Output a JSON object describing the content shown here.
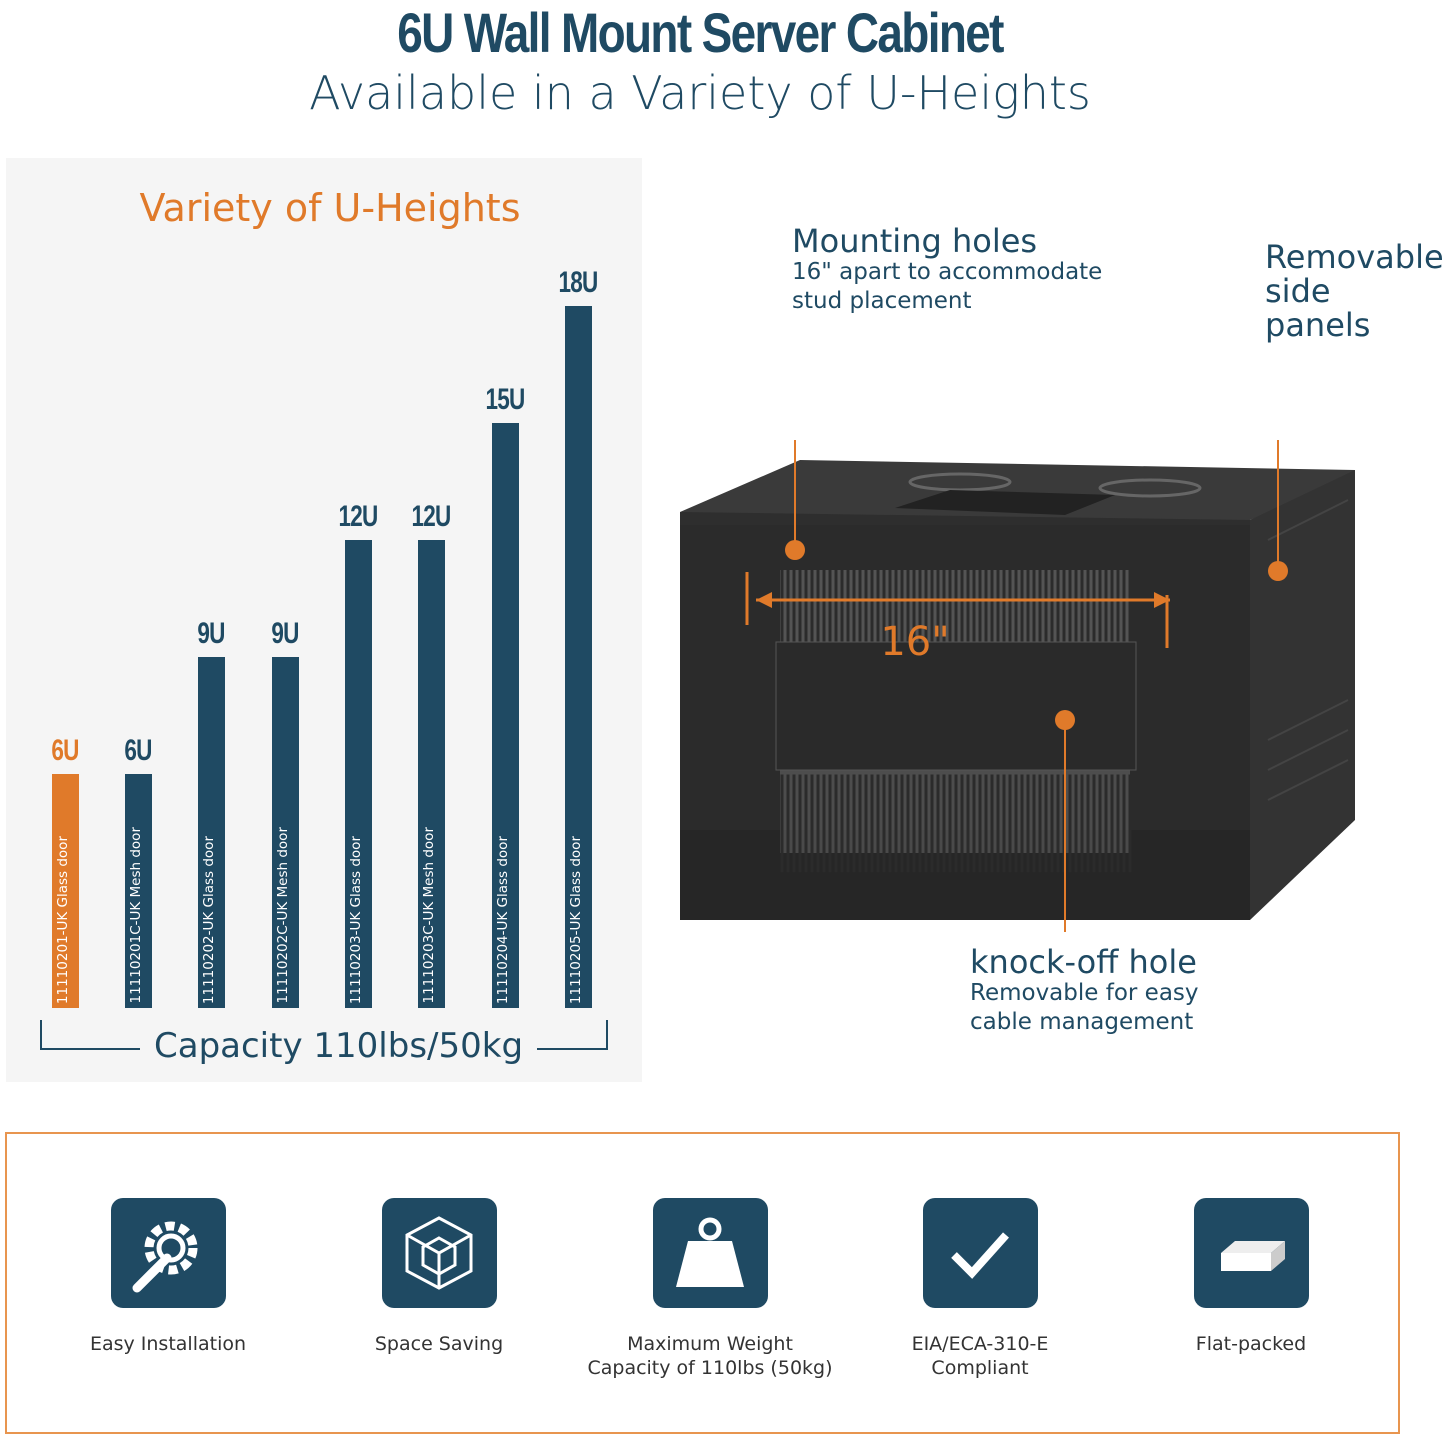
{
  "header": {
    "title": "6U Wall Mount Server Cabinet",
    "subtitle": "Available in a Variety of U-Heights"
  },
  "colors": {
    "primary": "#1f4a63",
    "accent": "#e07a2a",
    "panel_bg": "#f5f5f5"
  },
  "chart_data": {
    "type": "bar",
    "title": "Variety of U-Heights",
    "categories": [
      "11110201-UK Glass door",
      "11110201C-UK Mesh door",
      "11110202-UK Glass door",
      "11110202C-UK Mesh door",
      "11110203-UK Glass door",
      "11110203C-UK Mesh door",
      "11110204-UK Glass door",
      "11110205-UK Glass door"
    ],
    "values": [
      6,
      6,
      9,
      9,
      12,
      12,
      15,
      18
    ],
    "value_labels": [
      "6U",
      "6U",
      "9U",
      "9U",
      "12U",
      "12U",
      "15U",
      "18U"
    ],
    "highlight_index": 0,
    "ylim": [
      0,
      18
    ],
    "grid": false,
    "footer": "Capacity 110lbs/50kg"
  },
  "annotations": {
    "mounting": {
      "title": "Mounting holes",
      "line1": "16\" apart to accommodate",
      "line2": "stud placement"
    },
    "side": {
      "line1": "Removable",
      "line2": "side panels"
    },
    "knock": {
      "title": "knock-off hole",
      "line1": "Removable for easy",
      "line2": "cable management"
    },
    "dimension": "16\""
  },
  "features": [
    {
      "icon": "gear-wrench-icon",
      "line1": "Easy Installation",
      "line2": ""
    },
    {
      "icon": "cube-icon",
      "line1": "Space Saving",
      "line2": ""
    },
    {
      "icon": "weight-icon",
      "line1": "Maximum Weight",
      "line2": "Capacity of 110lbs (50kg)"
    },
    {
      "icon": "checkmark-icon",
      "line1": "EIA/ECA-310-E",
      "line2": "Compliant"
    },
    {
      "icon": "flat-box-icon",
      "line1": "Flat-packed",
      "line2": ""
    }
  ]
}
